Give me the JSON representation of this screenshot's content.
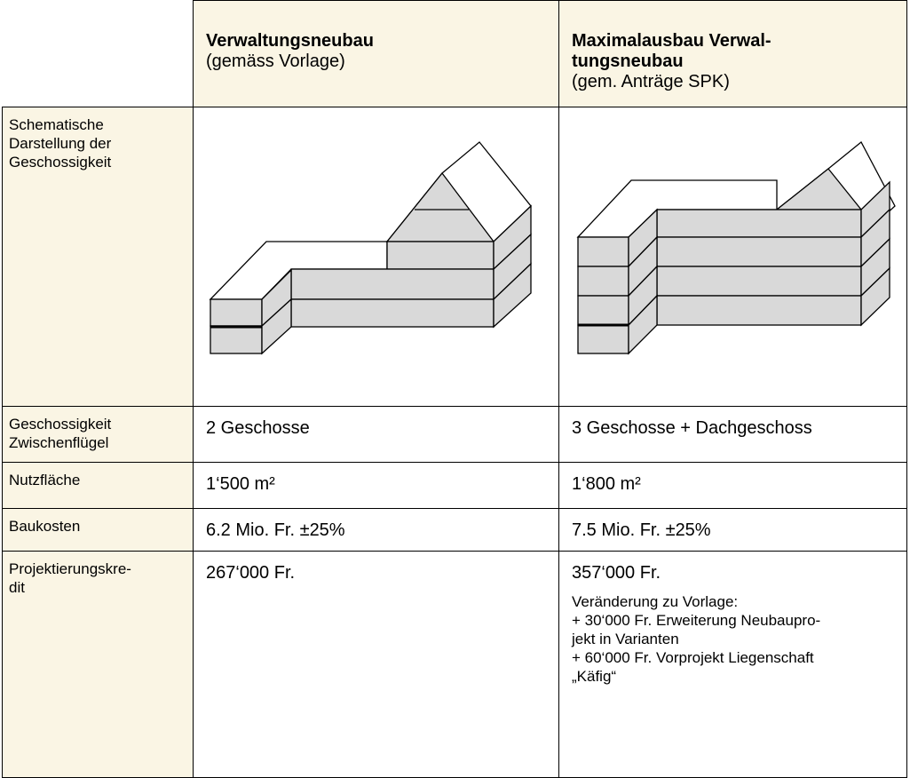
{
  "table": {
    "header": [
      {
        "title": [
          "Verwaltungsneubau"
        ],
        "subtitle": "(gemäss Vorlage)"
      },
      {
        "title": [
          "Maximalausbau Verwal-",
          "tungsneubau"
        ],
        "subtitle": "(gem. Anträge SPK)"
      }
    ],
    "rows": [
      {
        "label": [
          "Schematische",
          "Darstellung der",
          "Geschossigkeit"
        ]
      },
      {
        "label": [
          "Geschossigkeit",
          "Zwischenflügel"
        ],
        "cells": [
          {
            "text": "2 Geschosse"
          },
          {
            "text": "3 Geschosse + Dachgeschoss"
          }
        ]
      },
      {
        "label": [
          "Nutzfläche"
        ],
        "cells": [
          {
            "text": "1‘500 m²"
          },
          {
            "text": "1‘800 m²"
          }
        ]
      },
      {
        "label": [
          "Baukosten"
        ],
        "cells": [
          {
            "text": "6.2 Mio. Fr. ±25%"
          },
          {
            "text": "7.5 Mio. Fr. ±25%"
          }
        ]
      },
      {
        "label": [
          "Projektierungskre-",
          "dit"
        ],
        "cells": [
          {
            "text": "267‘000 Fr."
          },
          {
            "text": "357‘000 Fr.",
            "note": [
              "Veränderung zu Vorlage:",
              "+ 30‘000 Fr. Erweiterung Neubaupro-",
              "jekt in Varianten",
              "+ 60‘000 Fr. Vorprojekt Liegenschaft",
              "„Käfig“"
            ]
          }
        ]
      }
    ]
  }
}
